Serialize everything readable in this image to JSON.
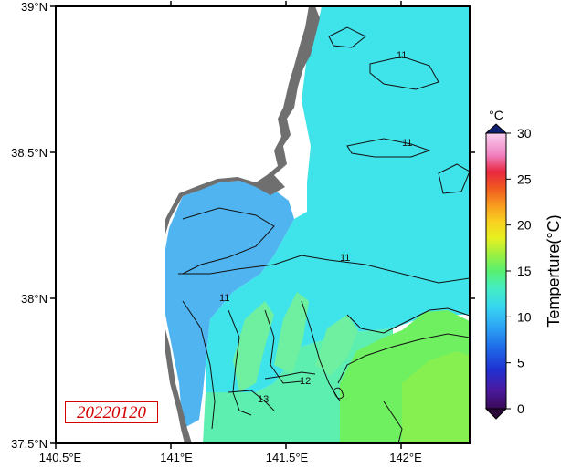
{
  "map": {
    "date_label": "20220120",
    "x_ticks": [
      "140.5°E",
      "141°E",
      "141.5°E",
      "142°E"
    ],
    "y_ticks": [
      "39°N",
      "38.5°N",
      "38°N",
      "37.5°N"
    ],
    "lon_range": [
      140.5,
      142.3
    ],
    "lat_range": [
      37.5,
      39.0
    ],
    "contour_labels": [
      "11",
      "11",
      "11",
      "11",
      "12",
      "13"
    ],
    "colors": {
      "land": "#6f6f6f",
      "coastal_water": "#4fb4f0",
      "offshore_water": "#3fe3ea",
      "warm_water_green": "#6ff060",
      "mid_water_teal": "#5cefb0"
    }
  },
  "colorbar": {
    "unit": "°C",
    "title": "Temperture(°C)",
    "ticks": [
      "0",
      "5",
      "10",
      "15",
      "20",
      "25",
      "30"
    ],
    "range": [
      0,
      30
    ]
  }
}
